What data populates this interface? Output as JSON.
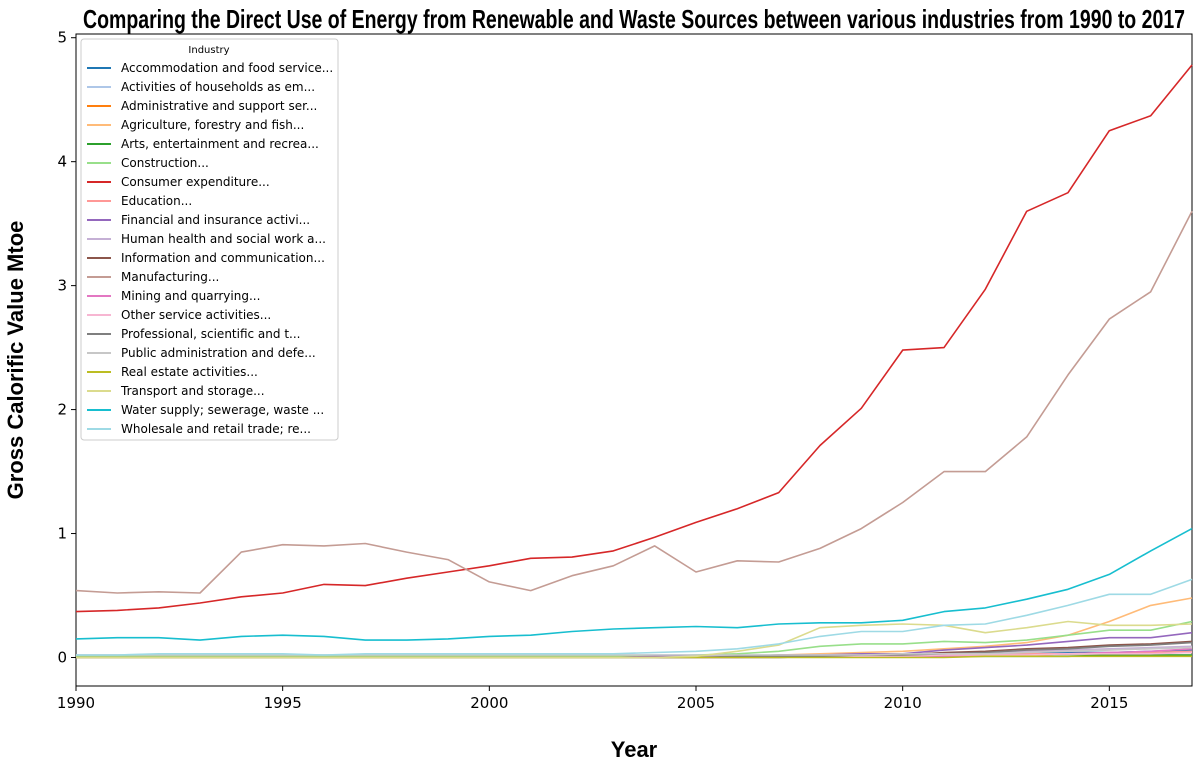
{
  "chart_data": {
    "type": "line",
    "title": "Comparing the Direct Use of Energy from Renewable and Waste Sources between various industries from 1990 to 2017",
    "xlabel": "Year",
    "ylabel": "Gross Calorific Value Mtoe",
    "xlim": [
      1990,
      2017
    ],
    "ylim": [
      -0.23,
      5.03
    ],
    "xticks": [
      1990,
      1995,
      2000,
      2005,
      2010,
      2015
    ],
    "yticks": [
      0,
      1,
      2,
      3,
      4,
      5
    ],
    "grid": false,
    "legend_title": "Industry",
    "legend_position": "top-left",
    "x": [
      1990,
      1991,
      1992,
      1993,
      1994,
      1995,
      1996,
      1997,
      1998,
      1999,
      2000,
      2001,
      2002,
      2003,
      2004,
      2005,
      2006,
      2007,
      2008,
      2009,
      2010,
      2011,
      2012,
      2013,
      2014,
      2015,
      2016,
      2017
    ],
    "series": [
      {
        "name": "Accommodation and food service...",
        "color": "#1f77b4",
        "values": [
          0.01,
          0.01,
          0.01,
          0.01,
          0.01,
          0.01,
          0.01,
          0.01,
          0.01,
          0.01,
          0.01,
          0.01,
          0.01,
          0.01,
          0.01,
          0.01,
          0.01,
          0.02,
          0.02,
          0.02,
          0.02,
          0.03,
          0.03,
          0.03,
          0.04,
          0.04,
          0.05,
          0.06
        ]
      },
      {
        "name": "Activities of households as em...",
        "color": "#aec7e8",
        "values": [
          0.02,
          0.02,
          0.02,
          0.02,
          0.02,
          0.02,
          0.02,
          0.02,
          0.02,
          0.02,
          0.02,
          0.02,
          0.02,
          0.02,
          0.02,
          0.02,
          0.02,
          0.02,
          0.02,
          0.02,
          0.02,
          0.02,
          0.02,
          0.02,
          0.02,
          0.02,
          0.02,
          0.02
        ]
      },
      {
        "name": "Administrative and support ser...",
        "color": "#ff7f0e",
        "values": [
          0.0,
          0.0,
          0.0,
          0.0,
          0.0,
          0.0,
          0.0,
          0.0,
          0.0,
          0.0,
          0.0,
          0.0,
          0.0,
          0.0,
          0.0,
          0.01,
          0.01,
          0.01,
          0.01,
          0.01,
          0.01,
          0.02,
          0.02,
          0.02,
          0.03,
          0.03,
          0.04,
          0.04
        ]
      },
      {
        "name": "Agriculture, forestry and fish...",
        "color": "#ffbb78",
        "values": [
          0.0,
          0.0,
          0.0,
          0.0,
          0.0,
          0.0,
          0.0,
          0.0,
          0.0,
          0.0,
          0.0,
          0.0,
          0.0,
          0.0,
          0.0,
          0.0,
          0.01,
          0.02,
          0.03,
          0.04,
          0.05,
          0.07,
          0.09,
          0.12,
          0.18,
          0.29,
          0.42,
          0.48
        ]
      },
      {
        "name": "Arts, entertainment and recrea...",
        "color": "#2ca02c",
        "values": [
          0.0,
          0.0,
          0.0,
          0.0,
          0.0,
          0.0,
          0.0,
          0.0,
          0.0,
          0.0,
          0.0,
          0.0,
          0.0,
          0.0,
          0.0,
          0.0,
          0.0,
          0.0,
          0.01,
          0.01,
          0.01,
          0.01,
          0.01,
          0.01,
          0.01,
          0.02,
          0.02,
          0.02
        ]
      },
      {
        "name": "Construction...",
        "color": "#98df8a",
        "values": [
          0.01,
          0.01,
          0.01,
          0.01,
          0.01,
          0.01,
          0.01,
          0.01,
          0.01,
          0.01,
          0.01,
          0.01,
          0.01,
          0.01,
          0.01,
          0.02,
          0.03,
          0.05,
          0.09,
          0.11,
          0.11,
          0.13,
          0.12,
          0.14,
          0.18,
          0.22,
          0.22,
          0.29
        ]
      },
      {
        "name": "Consumer expenditure...",
        "color": "#d62728",
        "values": [
          0.37,
          0.38,
          0.4,
          0.44,
          0.49,
          0.52,
          0.59,
          0.58,
          0.64,
          0.69,
          0.74,
          0.8,
          0.81,
          0.86,
          0.97,
          1.09,
          1.2,
          1.33,
          1.71,
          2.01,
          2.48,
          2.5,
          2.97,
          3.6,
          3.75,
          4.25,
          4.37,
          4.78
        ]
      },
      {
        "name": "Education...",
        "color": "#ff9896",
        "values": [
          0.0,
          0.0,
          0.0,
          0.0,
          0.0,
          0.0,
          0.0,
          0.0,
          0.0,
          0.0,
          0.0,
          0.0,
          0.0,
          0.0,
          0.0,
          0.0,
          0.01,
          0.01,
          0.01,
          0.01,
          0.01,
          0.02,
          0.02,
          0.03,
          0.03,
          0.04,
          0.04,
          0.05
        ]
      },
      {
        "name": "Financial and insurance activi...",
        "color": "#9467bd",
        "values": [
          0.0,
          0.0,
          0.0,
          0.0,
          0.0,
          0.0,
          0.0,
          0.0,
          0.0,
          0.0,
          0.0,
          0.0,
          0.0,
          0.0,
          0.01,
          0.01,
          0.01,
          0.02,
          0.02,
          0.03,
          0.03,
          0.06,
          0.08,
          0.1,
          0.13,
          0.16,
          0.16,
          0.2
        ]
      },
      {
        "name": "Human health and social work a...",
        "color": "#c5b0d5",
        "values": [
          0.0,
          0.0,
          0.0,
          0.0,
          0.0,
          0.0,
          0.0,
          0.0,
          0.0,
          0.0,
          0.0,
          0.0,
          0.0,
          0.0,
          0.0,
          0.01,
          0.01,
          0.01,
          0.02,
          0.02,
          0.02,
          0.03,
          0.04,
          0.05,
          0.06,
          0.07,
          0.08,
          0.09
        ]
      },
      {
        "name": "Information and communication...",
        "color": "#8c564b",
        "values": [
          0.0,
          0.0,
          0.0,
          0.0,
          0.0,
          0.0,
          0.0,
          0.0,
          0.0,
          0.0,
          0.0,
          0.0,
          0.0,
          0.0,
          0.0,
          0.0,
          0.0,
          0.01,
          0.01,
          0.01,
          0.02,
          0.04,
          0.05,
          0.07,
          0.08,
          0.1,
          0.11,
          0.13
        ]
      },
      {
        "name": "Manufacturing...",
        "color": "#c49c94",
        "values": [
          0.54,
          0.52,
          0.53,
          0.52,
          0.85,
          0.91,
          0.9,
          0.92,
          0.85,
          0.79,
          0.61,
          0.54,
          0.66,
          0.74,
          0.9,
          0.69,
          0.78,
          0.77,
          0.88,
          1.04,
          1.25,
          1.5,
          1.5,
          1.78,
          2.28,
          2.73,
          2.95,
          3.6
        ]
      },
      {
        "name": "Mining and quarrying...",
        "color": "#e377c2",
        "values": [
          0.0,
          0.0,
          0.0,
          0.0,
          0.0,
          0.0,
          0.0,
          0.0,
          0.0,
          0.0,
          0.0,
          0.0,
          0.0,
          0.0,
          0.0,
          0.0,
          0.0,
          0.0,
          0.01,
          0.01,
          0.01,
          0.01,
          0.02,
          0.02,
          0.03,
          0.04,
          0.05,
          0.07
        ]
      },
      {
        "name": "Other service activities...",
        "color": "#f7b6d2",
        "values": [
          0.0,
          0.0,
          0.0,
          0.0,
          0.0,
          0.0,
          0.0,
          0.0,
          0.0,
          0.0,
          0.0,
          0.0,
          0.0,
          0.0,
          0.0,
          0.0,
          0.01,
          0.01,
          0.01,
          0.01,
          0.01,
          0.02,
          0.02,
          0.02,
          0.03,
          0.03,
          0.03,
          0.04
        ]
      },
      {
        "name": "Professional, scientific and t...",
        "color": "#7f7f7f",
        "values": [
          0.0,
          0.0,
          0.0,
          0.0,
          0.0,
          0.0,
          0.0,
          0.0,
          0.0,
          0.0,
          0.0,
          0.0,
          0.0,
          0.0,
          0.0,
          0.0,
          0.01,
          0.01,
          0.01,
          0.02,
          0.02,
          0.03,
          0.04,
          0.06,
          0.07,
          0.09,
          0.1,
          0.12
        ]
      },
      {
        "name": "Public administration and defe...",
        "color": "#c7c7c7",
        "values": [
          0.02,
          0.02,
          0.02,
          0.02,
          0.02,
          0.02,
          0.02,
          0.02,
          0.02,
          0.02,
          0.02,
          0.02,
          0.02,
          0.02,
          0.02,
          0.02,
          0.02,
          0.02,
          0.02,
          0.02,
          0.03,
          0.03,
          0.03,
          0.04,
          0.05,
          0.06,
          0.07,
          0.08
        ]
      },
      {
        "name": "Real estate activities...",
        "color": "#bcbd22",
        "values": [
          0.0,
          0.0,
          0.0,
          0.0,
          0.0,
          0.0,
          0.0,
          0.0,
          0.0,
          0.0,
          0.0,
          0.0,
          0.0,
          0.0,
          0.0,
          0.0,
          0.0,
          0.0,
          0.0,
          0.0,
          0.0,
          0.0,
          0.01,
          0.01,
          0.01,
          0.01,
          0.01,
          0.01
        ]
      },
      {
        "name": "Transport and storage...",
        "color": "#dbdb8d",
        "values": [
          0.0,
          0.0,
          0.0,
          0.0,
          0.0,
          0.0,
          0.0,
          0.0,
          0.0,
          0.0,
          0.0,
          0.0,
          0.0,
          0.0,
          0.0,
          0.01,
          0.05,
          0.1,
          0.24,
          0.26,
          0.27,
          0.26,
          0.2,
          0.24,
          0.29,
          0.26,
          0.26,
          0.27
        ]
      },
      {
        "name": "Water supply; sewerage, waste ...",
        "color": "#17becf",
        "values": [
          0.15,
          0.16,
          0.16,
          0.14,
          0.17,
          0.18,
          0.17,
          0.14,
          0.14,
          0.15,
          0.17,
          0.18,
          0.21,
          0.23,
          0.24,
          0.25,
          0.24,
          0.27,
          0.28,
          0.28,
          0.3,
          0.37,
          0.4,
          0.47,
          0.55,
          0.67,
          0.86,
          1.04
        ]
      },
      {
        "name": "Wholesale and retail trade; re...",
        "color": "#9edae5",
        "values": [
          0.02,
          0.02,
          0.03,
          0.03,
          0.03,
          0.03,
          0.02,
          0.03,
          0.03,
          0.03,
          0.03,
          0.03,
          0.03,
          0.03,
          0.04,
          0.05,
          0.07,
          0.11,
          0.17,
          0.21,
          0.21,
          0.26,
          0.27,
          0.34,
          0.42,
          0.51,
          0.51,
          0.63
        ]
      }
    ]
  }
}
